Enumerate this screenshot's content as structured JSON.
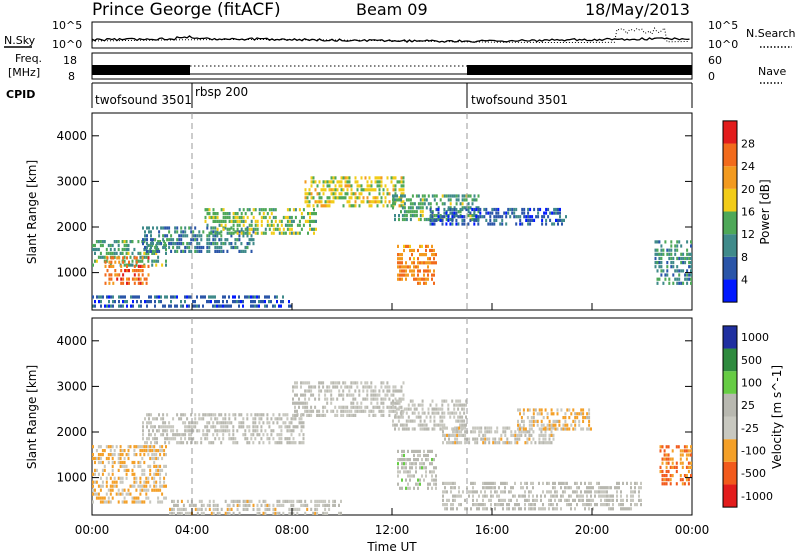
{
  "header": {
    "station": "Prince George (fitACF)",
    "beam": "Beam 09",
    "date": "18/May/2013"
  },
  "status_panels": {
    "nsky_label": "N.Sky",
    "nsearch_label": "N.Search",
    "noise_ticks": [
      "10^5",
      "10^0"
    ],
    "freq_label_line1": "Freq.",
    "freq_label_line2": "[MHz]",
    "freq_ticks": [
      "18",
      "8"
    ],
    "nave_label": "Nave",
    "nave_ticks": [
      "60",
      "0"
    ],
    "cpid_label": "CPID",
    "cpid_segments": [
      {
        "name": "twofsound 3501",
        "start_hour": 0,
        "end_hour": 4
      },
      {
        "name": "rbsp 200",
        "start_hour": 4,
        "end_hour": 15
      },
      {
        "name": "twofsound 3501",
        "start_hour": 15,
        "end_hour": 24
      }
    ]
  },
  "chart_data": [
    {
      "type": "heatmap",
      "title": "",
      "xlabel": "",
      "ylabel": "Slant Range [km]",
      "xlim": [
        0,
        24
      ],
      "ylim": [
        180,
        4500
      ],
      "yticks": [
        "1000",
        "2000",
        "3000",
        "4000"
      ],
      "colorbar_label": "Power [dB]",
      "colorbar_ticks": [
        "4",
        "8",
        "12",
        "16",
        "20",
        "24",
        "28"
      ],
      "colorbar_range": [
        0,
        30
      ],
      "colors": [
        "#0018ff",
        "#2a55a8",
        "#3f8a8a",
        "#4ea858",
        "#f2cc18",
        "#f39a1f",
        "#f26b1c",
        "#e21c1c"
      ],
      "bands": [
        {
          "x0": 0.0,
          "x1": 3.0,
          "y0": 1200,
          "y1": 1800,
          "value": 12
        },
        {
          "x0": 0.5,
          "x1": 2.3,
          "y0": 800,
          "y1": 1450,
          "value": 24
        },
        {
          "x0": 2.0,
          "x1": 6.5,
          "y0": 1500,
          "y1": 2100,
          "value": 9
        },
        {
          "x0": 4.5,
          "x1": 9.0,
          "y0": 1900,
          "y1": 2500,
          "value": 14
        },
        {
          "x0": 8.5,
          "x1": 12.5,
          "y0": 2500,
          "y1": 3200,
          "value": 16
        },
        {
          "x0": 12.0,
          "x1": 15.5,
          "y0": 2200,
          "y1": 2800,
          "value": 12
        },
        {
          "x0": 12.2,
          "x1": 13.8,
          "y0": 800,
          "y1": 1700,
          "value": 22
        },
        {
          "x0": 13.5,
          "x1": 19.0,
          "y0": 2100,
          "y1": 2500,
          "value": 6
        },
        {
          "x0": 0.0,
          "x1": 8.0,
          "y0": 300,
          "y1": 600,
          "value": 6
        },
        {
          "x0": 22.5,
          "x1": 24.0,
          "y0": 800,
          "y1": 1800,
          "value": 10
        }
      ]
    },
    {
      "type": "heatmap",
      "title": "",
      "xlabel": "Time UT",
      "ylabel": "Slant Range [km]",
      "xlim": [
        0,
        24
      ],
      "ylim": [
        180,
        4500
      ],
      "yticks": [
        "1000",
        "2000",
        "3000",
        "4000"
      ],
      "xticks": [
        "00:00",
        "04:00",
        "08:00",
        "12:00",
        "16:00",
        "20:00",
        "00:00"
      ],
      "colorbar_label": "Velocity [m s^-1]",
      "colorbar_ticks": [
        "1000",
        "500",
        "100",
        "25",
        "-25",
        "-100",
        "-500",
        "-1000"
      ],
      "colorbar_range": [
        -1200,
        1200
      ],
      "colors": [
        "#e21c1c",
        "#f25a1c",
        "#f4a028",
        "#c8c8c0",
        "#b8b8b0",
        "#66cc44",
        "#2e8a3e",
        "#2030a0"
      ],
      "bands": [
        {
          "x0": 0.0,
          "x1": 3.0,
          "y0": 500,
          "y1": 1800,
          "value": -300
        },
        {
          "x0": 2.0,
          "x1": 8.5,
          "y0": 1800,
          "y1": 2500,
          "value": 0
        },
        {
          "x0": 8.0,
          "x1": 12.5,
          "y0": 2400,
          "y1": 3200,
          "value": 0
        },
        {
          "x0": 12.0,
          "x1": 15.0,
          "y0": 2100,
          "y1": 2800,
          "value": 0
        },
        {
          "x0": 12.2,
          "x1": 13.8,
          "y0": 800,
          "y1": 1700,
          "value": 60
        },
        {
          "x0": 14.0,
          "x1": 18.5,
          "y0": 1800,
          "y1": 2200,
          "value": -80
        },
        {
          "x0": 17.0,
          "x1": 20.0,
          "y0": 2100,
          "y1": 2600,
          "value": -250
        },
        {
          "x0": 22.7,
          "x1": 24.0,
          "y0": 900,
          "y1": 1800,
          "value": -600
        },
        {
          "x0": 3.0,
          "x1": 10.0,
          "y0": 250,
          "y1": 600,
          "value": -60
        },
        {
          "x0": 14.0,
          "x1": 22.0,
          "y0": 350,
          "y1": 1000,
          "value": 0
        }
      ]
    }
  ]
}
